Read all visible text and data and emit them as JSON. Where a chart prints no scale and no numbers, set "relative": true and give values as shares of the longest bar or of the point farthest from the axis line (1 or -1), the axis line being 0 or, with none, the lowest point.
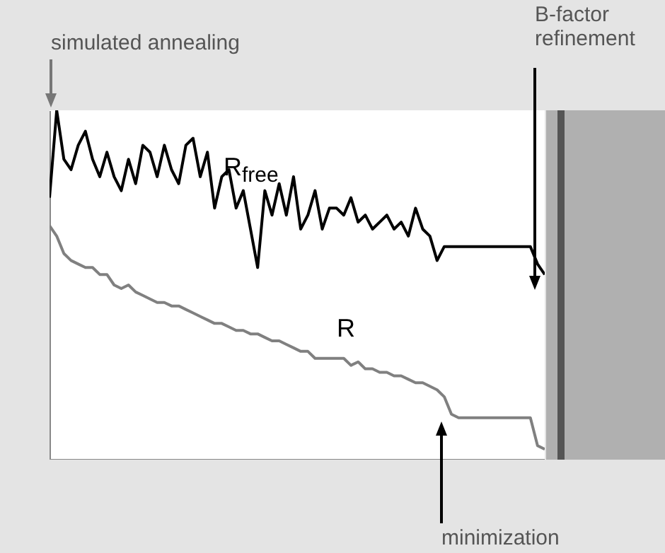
{
  "chart_data": {
    "type": "line",
    "relative": true,
    "categories": [
      null,
      null,
      null,
      null,
      null,
      null,
      null,
      null,
      null,
      null,
      null,
      null,
      null,
      null,
      null,
      null,
      null,
      null,
      null,
      null,
      null,
      null,
      null,
      null,
      null,
      null,
      null,
      null,
      null,
      null,
      null,
      null,
      null,
      null,
      null,
      null,
      null,
      null,
      null,
      null,
      null,
      null,
      null,
      null,
      null,
      null,
      null,
      null,
      null,
      null,
      null,
      null,
      null,
      null,
      null,
      null,
      null,
      null,
      null,
      null,
      null,
      null,
      null,
      null,
      null,
      null,
      null,
      null,
      null,
      null
    ],
    "series": [
      {
        "name": "R$_{free}$",
        "color": "#000000",
        "values": [
          0.75,
          1,
          0.86,
          0.83,
          0.9,
          0.94,
          0.86,
          0.81,
          0.88,
          0.81,
          0.77,
          0.86,
          0.79,
          0.9,
          0.88,
          0.81,
          0.9,
          0.83,
          0.79,
          0.9,
          0.92,
          0.81,
          0.88,
          0.72,
          0.81,
          0.83,
          0.72,
          0.77,
          0.66,
          0.55,
          0.77,
          0.7,
          0.79,
          0.7,
          0.81,
          0.66,
          0.7,
          0.77,
          0.66,
          0.72,
          0.72,
          0.7,
          0.75,
          0.68,
          0.7,
          0.66,
          0.68,
          0.7,
          0.66,
          0.68,
          0.64,
          0.72,
          0.66,
          0.64,
          0.57,
          0.61,
          0.61,
          0.61,
          0.61,
          0.61,
          0.61,
          0.61,
          0.61,
          0.61,
          0.61,
          0.61,
          0.61,
          0.61,
          0.56,
          0.53
        ]
      },
      {
        "name": "R",
        "color": "#808080",
        "values": [
          0.67,
          0.64,
          0.59,
          0.57,
          0.56,
          0.55,
          0.55,
          0.53,
          0.53,
          0.5,
          0.49,
          0.5,
          0.48,
          0.47,
          0.46,
          0.45,
          0.45,
          0.44,
          0.44,
          0.43,
          0.42,
          0.41,
          0.4,
          0.39,
          0.39,
          0.38,
          0.37,
          0.37,
          0.36,
          0.36,
          0.35,
          0.34,
          0.34,
          0.33,
          0.32,
          0.31,
          0.31,
          0.29,
          0.29,
          0.29,
          0.29,
          0.29,
          0.27,
          0.28,
          0.26,
          0.26,
          0.25,
          0.25,
          0.24,
          0.24,
          0.23,
          0.22,
          0.22,
          0.21,
          0.2,
          0.18,
          0.13,
          0.12,
          0.12,
          0.12,
          0.12,
          0.12,
          0.12,
          0.12,
          0.12,
          0.12,
          0.12,
          0.12,
          0.04,
          0.03
        ]
      }
    ],
    "annotations": [
      "simulated annealing",
      "B-factor refinement",
      "minimization"
    ]
  }
}
